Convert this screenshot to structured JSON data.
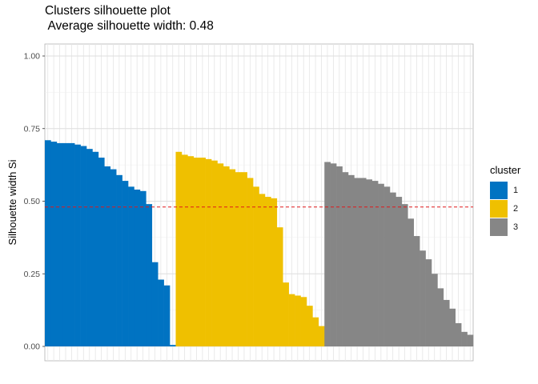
{
  "chart_data": {
    "type": "bar",
    "title": "Clusters silhouette plot",
    "subtitle": " Average silhouette width: 0.48",
    "xlabel": "",
    "ylabel": "Silhouette width Si",
    "ylim": [
      0,
      1.0
    ],
    "yticks": [
      "0.00",
      "0.25",
      "0.50",
      "0.75",
      "1.00"
    ],
    "average_line": 0.48,
    "grid": true,
    "legend": {
      "title": "cluster",
      "placement": "right"
    },
    "series": [
      {
        "name": "1",
        "color": "#0073C2",
        "values": [
          0.71,
          0.705,
          0.7,
          0.7,
          0.7,
          0.695,
          0.69,
          0.68,
          0.67,
          0.65,
          0.62,
          0.61,
          0.59,
          0.57,
          0.55,
          0.54,
          0.535,
          0.49,
          0.29,
          0.23,
          0.21,
          0.005
        ]
      },
      {
        "name": "2",
        "color": "#EFC000",
        "values": [
          0.67,
          0.66,
          0.655,
          0.65,
          0.65,
          0.645,
          0.64,
          0.63,
          0.62,
          0.61,
          0.6,
          0.6,
          0.58,
          0.55,
          0.525,
          0.515,
          0.51,
          0.41,
          0.22,
          0.18,
          0.175,
          0.17,
          0.14,
          0.1,
          0.07
        ]
      },
      {
        "name": "3",
        "color": "#868686",
        "values": [
          0.635,
          0.63,
          0.62,
          0.6,
          0.59,
          0.58,
          0.58,
          0.575,
          0.57,
          0.56,
          0.55,
          0.53,
          0.515,
          0.49,
          0.44,
          0.38,
          0.33,
          0.3,
          0.25,
          0.2,
          0.16,
          0.13,
          0.08,
          0.05,
          0.04
        ]
      }
    ]
  }
}
